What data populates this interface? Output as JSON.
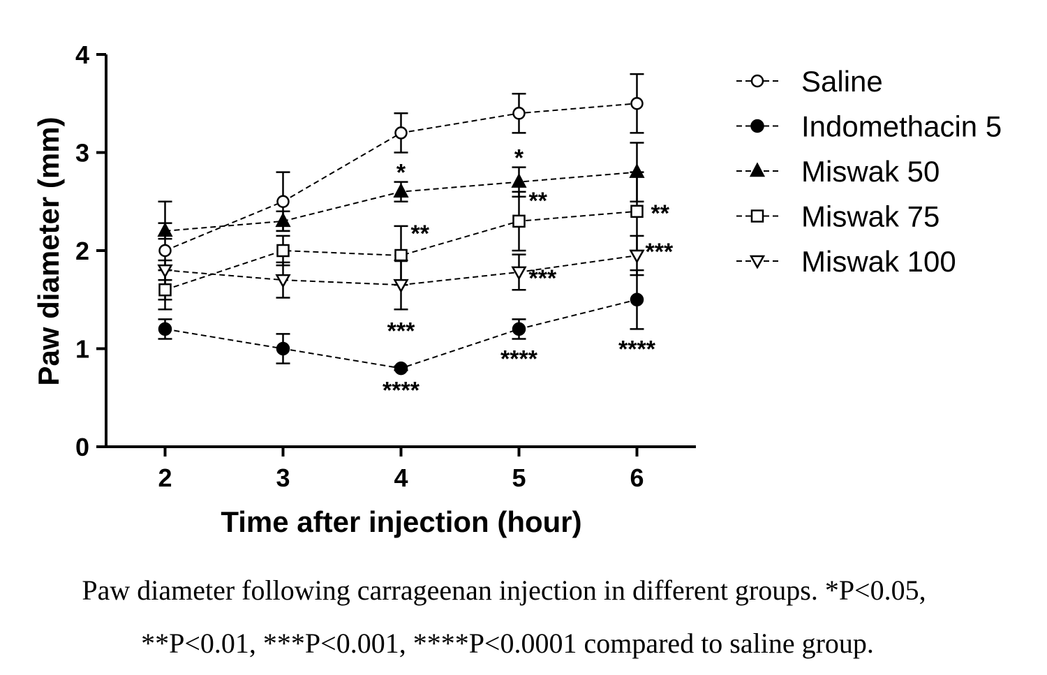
{
  "chart_data": {
    "type": "line",
    "xlabel": "Time after injection (hour)",
    "ylabel": "Paw diameter (mm)",
    "x": [
      2,
      3,
      4,
      5,
      6
    ],
    "x_ticks": [
      "2",
      "3",
      "4",
      "5",
      "6"
    ],
    "xlim": [
      1.5,
      6.5
    ],
    "ylim": [
      0,
      4
    ],
    "y_ticks": [
      "0",
      "1",
      "2",
      "3",
      "4"
    ],
    "grid": false,
    "legend_position": "right",
    "series": [
      {
        "name": "Saline",
        "marker": "open-circle",
        "y": [
          2.0,
          2.5,
          3.2,
          3.4,
          3.5
        ],
        "error": [
          0.5,
          0.3,
          0.2,
          0.2,
          0.3
        ],
        "significance": [
          "",
          "",
          "",
          "",
          ""
        ]
      },
      {
        "name": "Indomethacin 5",
        "marker": "filled-circle",
        "y": [
          1.2,
          1.0,
          0.8,
          1.2,
          1.5
        ],
        "error": [
          0.1,
          0.15,
          0.02,
          0.1,
          0.3
        ],
        "significance": [
          "",
          "",
          "****",
          "****",
          "****"
        ]
      },
      {
        "name": "Miswak 50",
        "marker": "filled-triangle-up",
        "y": [
          2.2,
          2.3,
          2.6,
          2.7,
          2.8
        ],
        "error": [
          0.08,
          0.1,
          0.1,
          0.15,
          0.3
        ],
        "significance": [
          "",
          "",
          "*",
          "*",
          ""
        ]
      },
      {
        "name": "Miswak 75",
        "marker": "open-square",
        "y": [
          1.6,
          2.0,
          1.95,
          2.3,
          2.4
        ],
        "error": [
          0.2,
          0.15,
          0.3,
          0.3,
          0.4
        ],
        "significance": [
          "",
          "",
          "**",
          "**",
          "**"
        ]
      },
      {
        "name": "Miswak 100",
        "marker": "open-triangle-down",
        "y": [
          1.8,
          1.7,
          1.65,
          1.78,
          1.95
        ],
        "error": [
          0.1,
          0.18,
          0.25,
          0.18,
          0.2
        ],
        "significance": [
          "",
          "",
          "***",
          "***",
          "***"
        ]
      }
    ]
  },
  "caption": {
    "line1": "Paw diameter following carrageenan injection in different groups. *P<0.05,",
    "line2": "**P<0.01, ***P<0.001, ****P<0.0001 compared to saline group."
  }
}
